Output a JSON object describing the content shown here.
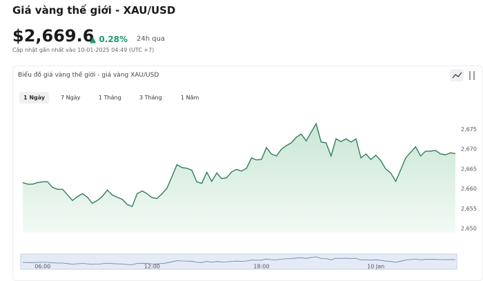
{
  "header": {
    "title": "Giá vàng thế giới - XAU/USD",
    "price": "$2,669.6",
    "change": "0.28%",
    "period": "24h qua",
    "updated": "Cập nhật gần nhất vào 10-01-2025 04:49 (UTC +7)"
  },
  "tabs": [
    "1 Ngày",
    "7 Ngày",
    "1 Tháng",
    "3 Tháng",
    "1 Năm"
  ],
  "selected_tab": 0,
  "chart_data": {
    "type": "line",
    "title": "Biểu đồ giá vàng thế giới - giá vàng XAU/USD",
    "categories": [
      null,
      null,
      null,
      null,
      "06:00",
      null,
      null,
      null,
      null,
      null,
      null,
      null,
      null,
      null,
      null,
      null,
      null,
      null,
      null,
      null,
      null,
      null,
      null,
      null,
      null,
      null,
      "12:00",
      null,
      null,
      null,
      null,
      null,
      null,
      null,
      null,
      null,
      null,
      null,
      null,
      null,
      null,
      null,
      null,
      null,
      null,
      null,
      null,
      null,
      "18:00",
      null,
      null,
      null,
      null,
      null,
      null,
      null,
      null,
      null,
      null,
      null,
      null,
      null,
      null,
      null,
      null,
      null,
      null,
      null,
      null,
      null,
      null,
      "10 Jan",
      null,
      null,
      null,
      null,
      null,
      null,
      null,
      null,
      null,
      null,
      null,
      null,
      null,
      null,
      null,
      null
    ],
    "values": [
      2661.6,
      2661.2,
      2661.2,
      2661.6,
      2661.8,
      2661.8,
      2660.4,
      2659.9,
      2659.9,
      2658.5,
      2657.1,
      2658.1,
      2658.8,
      2657.9,
      2656.4,
      2657.1,
      2658.1,
      2659.7,
      2658.5,
      2657.9,
      2657.4,
      2656.1,
      2655.6,
      2658.8,
      2659.5,
      2658.8,
      2657.8,
      2657.6,
      2658.8,
      2660.2,
      2663.1,
      2666.1,
      2665.4,
      2665.2,
      2664.7,
      2661.8,
      2661.4,
      2664.2,
      2661.9,
      2664.0,
      2662.6,
      2662.8,
      2664.3,
      2664.9,
      2664.5,
      2665.2,
      2667.8,
      2667.3,
      2667.4,
      2670.4,
      2668.8,
      2668.3,
      2670.0,
      2670.9,
      2671.6,
      2673.0,
      2673.8,
      2672.1,
      2674.3,
      2676.4,
      2671.8,
      2671.6,
      2668.3,
      2672.6,
      2671.9,
      2672.6,
      2671.8,
      2672.6,
      2667.8,
      2668.8,
      2667.4,
      2668.5,
      2667.1,
      2665.0,
      2664.0,
      2661.9,
      2664.8,
      2667.8,
      2669.2,
      2670.6,
      2668.3,
      2669.5,
      2669.5,
      2669.7,
      2668.8,
      2668.6,
      2669.1,
      2668.9
    ],
    "color": "#2f7d5a",
    "ylim": [
      2649,
      2678
    ],
    "yticks": [
      {
        "value": 2650,
        "label": "2,650"
      },
      {
        "value": 2655,
        "label": "2,655"
      },
      {
        "value": 2660,
        "label": "2,660"
      },
      {
        "value": 2665,
        "label": "2,665"
      },
      {
        "value": 2670,
        "label": "2,670"
      },
      {
        "value": 2675,
        "label": "2,675"
      }
    ],
    "grid": false
  }
}
